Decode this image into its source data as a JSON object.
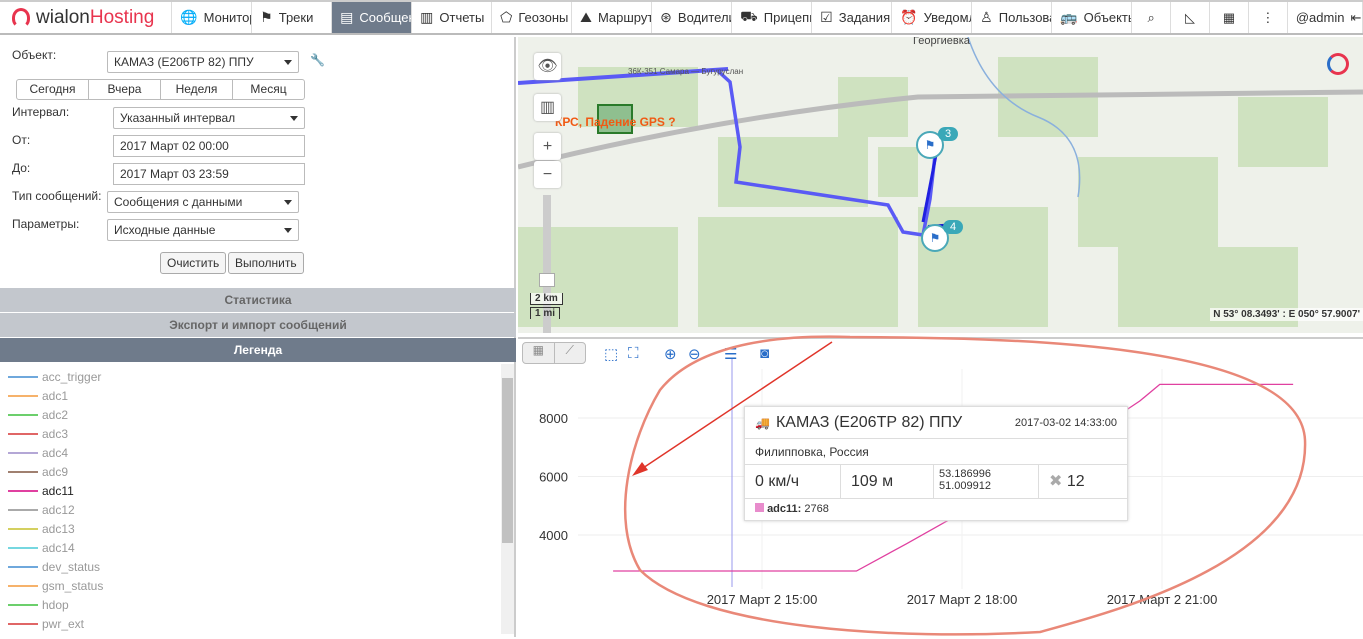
{
  "nav": {
    "brand_a": "wialon",
    "brand_b": "Hosting",
    "tabs": [
      {
        "label": "Монитор",
        "icon": "globe-icon"
      },
      {
        "label": "Треки",
        "icon": "flag-icon"
      },
      {
        "label": "Сообщения",
        "icon": "messages-icon",
        "active": true
      },
      {
        "label": "Отчеты",
        "icon": "report-icon"
      },
      {
        "label": "Геозоны",
        "icon": "geofence-icon"
      },
      {
        "label": "Маршруты",
        "icon": "route-icon"
      },
      {
        "label": "Водители",
        "icon": "steering-wheel-icon"
      },
      {
        "label": "Прицепы",
        "icon": "trailer-icon"
      },
      {
        "label": "Задания",
        "icon": "task-icon"
      },
      {
        "label": "Уведомления",
        "icon": "alarm-icon"
      },
      {
        "label": "Пользователи",
        "icon": "user-icon"
      },
      {
        "label": "Объекты",
        "icon": "bus-icon"
      }
    ],
    "user": "@admin"
  },
  "form": {
    "object_label": "Объект:",
    "object_value": "КАМАЗ (Е206ТР 82) ППУ",
    "periods": [
      "Сегодня",
      "Вчера",
      "Неделя",
      "Месяц"
    ],
    "interval_label": "Интервал:",
    "interval_value": "Указанный интервал",
    "from_label": "От:",
    "from_value": "2017 Март 02 00:00",
    "to_label": "До:",
    "to_value": "2017 Март 03 23:59",
    "type_label": "Тип сообщений:",
    "type_value": "Сообщения с данными",
    "params_label": "Параметры:",
    "params_value": "Исходные данные",
    "clear": "Очистить",
    "run": "Выполнить"
  },
  "sections": {
    "stats": "Статистика",
    "export": "Экспорт и импорт сообщений",
    "legend": "Легенда"
  },
  "legend": [
    {
      "name": "acc_trigger",
      "color": "#6fa8dc"
    },
    {
      "name": "adc1",
      "color": "#f6b26b"
    },
    {
      "name": "adc2",
      "color": "#6ccf6c"
    },
    {
      "name": "adc3",
      "color": "#e06666"
    },
    {
      "name": "adc4",
      "color": "#b4a7d6"
    },
    {
      "name": "adc9",
      "color": "#a08070"
    },
    {
      "name": "adc11",
      "color": "#e040a0",
      "active": true
    },
    {
      "name": "adc12",
      "color": "#aaaaaa"
    },
    {
      "name": "adc13",
      "color": "#d4d060"
    },
    {
      "name": "adc14",
      "color": "#76d7e0"
    },
    {
      "name": "dev_status",
      "color": "#6fa8dc"
    },
    {
      "name": "gsm_status",
      "color": "#f6b26b"
    },
    {
      "name": "hdop",
      "color": "#6ccf6c"
    },
    {
      "name": "pwr_ext",
      "color": "#e06666"
    }
  ],
  "map": {
    "town": "Георгиевка",
    "road": "36К-351 Самара — Бугуруслан",
    "geofence_label": "КРС, Падение GPS ?",
    "markers": [
      "3",
      "4"
    ],
    "scale_km": "2 km",
    "scale_mi": "1 mi",
    "coords": "N 53° 08.3493' : E 050° 57.9007'"
  },
  "tooltip": {
    "title": "КАМАЗ (Е206ТР 82) ППУ",
    "time": "2017-03-02 14:33:00",
    "address": "Филипповка, Россия",
    "speed": "0 км/ч",
    "altitude": "109 м",
    "lat": "53.186996",
    "lon": "51.009912",
    "satellites": "12",
    "param": "adc11:",
    "param_value": "2768"
  },
  "chart_data": {
    "type": "line",
    "x_ticks": [
      "2017 Март  2 15:00",
      "2017 Март  2 18:00",
      "2017 Март  2 21:00"
    ],
    "y_ticks": [
      "4000",
      "6000",
      "8000"
    ],
    "grid": true,
    "series": [
      {
        "name": "adc11",
        "color": "#e040a0",
        "points": [
          [
            "12:46",
            2768
          ],
          [
            "14:33",
            2768
          ],
          [
            "16:25",
            2768
          ],
          [
            "17:10",
            3700
          ],
          [
            "19:00",
            6050
          ],
          [
            "20:40",
            8580
          ],
          [
            "20:58",
            9150
          ],
          [
            "22:58",
            9150
          ]
        ]
      }
    ],
    "cursor_time": "14:33"
  }
}
